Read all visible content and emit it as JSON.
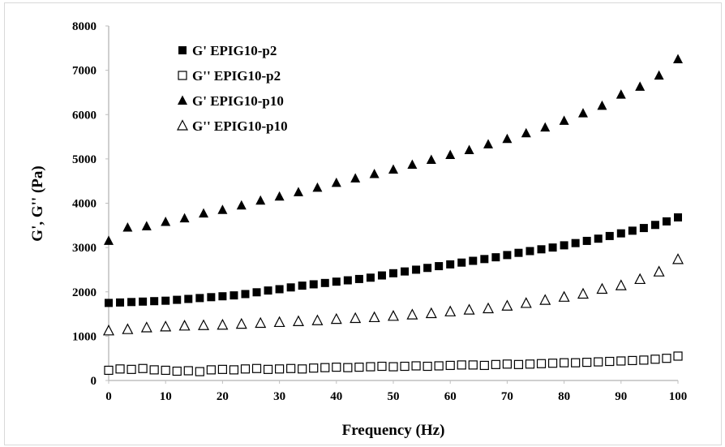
{
  "chart_data": {
    "type": "scatter",
    "title": "",
    "xlabel": "Frequency (Hz)",
    "ylabel": "G', G'' (Pa)",
    "xlim": [
      0,
      100
    ],
    "ylim": [
      0,
      8000
    ],
    "x_ticks": [
      0,
      10,
      20,
      30,
      40,
      50,
      60,
      70,
      80,
      90,
      100
    ],
    "y_ticks": [
      0,
      1000,
      2000,
      3000,
      4000,
      5000,
      6000,
      7000,
      8000
    ],
    "grid": false,
    "legend_position": "top-left",
    "series": [
      {
        "name": "G' EPIG10-p2",
        "marker": "square-filled",
        "x": [
          0,
          2,
          4,
          6,
          8,
          10,
          12,
          14,
          16,
          18,
          20,
          22,
          24,
          26,
          28,
          30,
          32,
          34,
          36,
          38,
          40,
          42,
          44,
          46,
          48,
          50,
          52,
          54,
          56,
          58,
          60,
          62,
          64,
          66,
          68,
          70,
          72,
          74,
          76,
          78,
          80,
          82,
          84,
          86,
          88,
          90,
          92,
          94,
          96,
          98,
          100
        ],
        "y": [
          1750,
          1760,
          1770,
          1780,
          1790,
          1800,
          1820,
          1840,
          1860,
          1880,
          1900,
          1920,
          1950,
          1990,
          2030,
          2060,
          2100,
          2140,
          2170,
          2200,
          2230,
          2260,
          2290,
          2320,
          2370,
          2420,
          2460,
          2500,
          2540,
          2580,
          2620,
          2660,
          2700,
          2740,
          2780,
          2830,
          2880,
          2920,
          2960,
          3000,
          3050,
          3100,
          3150,
          3200,
          3260,
          3320,
          3380,
          3440,
          3510,
          3590,
          3680
        ]
      },
      {
        "name": "G'' EPIG10-p2",
        "marker": "square-open",
        "x": [
          0,
          2,
          4,
          6,
          8,
          10,
          12,
          14,
          16,
          18,
          20,
          22,
          24,
          26,
          28,
          30,
          32,
          34,
          36,
          38,
          40,
          42,
          44,
          46,
          48,
          50,
          52,
          54,
          56,
          58,
          60,
          62,
          64,
          66,
          68,
          70,
          72,
          74,
          76,
          78,
          80,
          82,
          84,
          86,
          88,
          90,
          92,
          94,
          96,
          98,
          100
        ],
        "y": [
          230,
          260,
          250,
          270,
          240,
          230,
          210,
          220,
          200,
          240,
          250,
          240,
          260,
          270,
          250,
          260,
          270,
          260,
          280,
          290,
          300,
          290,
          300,
          310,
          320,
          310,
          320,
          330,
          320,
          330,
          340,
          350,
          350,
          340,
          360,
          370,
          360,
          370,
          380,
          390,
          400,
          400,
          410,
          420,
          430,
          440,
          450,
          460,
          480,
          500,
          550
        ]
      },
      {
        "name": "G' EPIG10-p10",
        "marker": "triangle-filled",
        "x": [
          0,
          3.33,
          6.67,
          10,
          13.33,
          16.67,
          20,
          23.33,
          26.67,
          30,
          33.33,
          36.67,
          40,
          43.33,
          46.67,
          50,
          53.33,
          56.67,
          60,
          63.33,
          66.67,
          70,
          73.33,
          76.67,
          80,
          83.33,
          86.67,
          90,
          93.33,
          96.67,
          100
        ],
        "y": [
          3150,
          3450,
          3480,
          3580,
          3660,
          3770,
          3850,
          3950,
          4060,
          4150,
          4250,
          4350,
          4460,
          4560,
          4660,
          4760,
          4870,
          4980,
          5090,
          5200,
          5330,
          5450,
          5580,
          5710,
          5860,
          6030,
          6200,
          6450,
          6630,
          6880,
          7250
        ]
      },
      {
        "name": "G'' EPIG10-p10",
        "marker": "triangle-open",
        "x": [
          0,
          3.33,
          6.67,
          10,
          13.33,
          16.67,
          20,
          23.33,
          26.67,
          30,
          33.33,
          36.67,
          40,
          43.33,
          46.67,
          50,
          53.33,
          56.67,
          60,
          63.33,
          66.67,
          70,
          73.33,
          76.67,
          80,
          83.33,
          86.67,
          90,
          93.33,
          96.67,
          100
        ],
        "y": [
          1120,
          1150,
          1190,
          1210,
          1230,
          1240,
          1250,
          1270,
          1290,
          1310,
          1330,
          1350,
          1380,
          1400,
          1420,
          1450,
          1480,
          1510,
          1550,
          1590,
          1620,
          1680,
          1740,
          1810,
          1880,
          1950,
          2060,
          2140,
          2280,
          2450,
          2730
        ]
      }
    ]
  }
}
